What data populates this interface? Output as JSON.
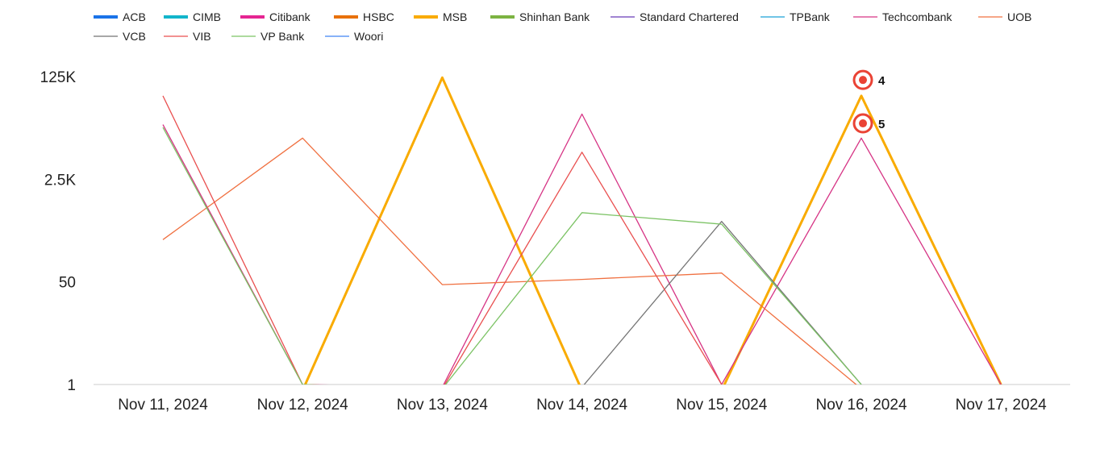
{
  "chart_data": {
    "type": "line",
    "y_scale": "log",
    "ylim": [
      1,
      125000
    ],
    "y_ticks": [
      "125K",
      "2.5K",
      "50",
      "1"
    ],
    "grid": false,
    "legend_position": "top-left",
    "categories": [
      "Nov 11, 2024",
      "Nov 12, 2024",
      "Nov 13, 2024",
      "Nov 14, 2024",
      "Nov 15, 2024",
      "Nov 16, 2024",
      "Nov 17, 2024"
    ],
    "series": [
      {
        "name": "ACB",
        "color": "#1a73e8",
        "legend_style": "bar",
        "values": [
          null,
          null,
          null,
          null,
          null,
          null,
          null
        ]
      },
      {
        "name": "CIMB",
        "color": "#12b5cb",
        "legend_style": "bar",
        "values": [
          null,
          null,
          null,
          null,
          null,
          null,
          null
        ]
      },
      {
        "name": "Citibank",
        "color": "#e52592",
        "legend_style": "bar",
        "values": [
          null,
          null,
          null,
          null,
          null,
          null,
          null
        ]
      },
      {
        "name": "HSBC",
        "color": "#e8710a",
        "legend_style": "bar",
        "values": [
          null,
          null,
          null,
          null,
          null,
          null,
          null
        ]
      },
      {
        "name": "MSB",
        "color": "#f9ab00",
        "legend_style": "bar",
        "values": [
          null,
          0.8,
          120000,
          0.8,
          0.8,
          60000,
          1
        ]
      },
      {
        "name": "Shinhan Bank",
        "color": "#7cb342",
        "legend_style": "bar",
        "values": [
          null,
          null,
          null,
          null,
          null,
          null,
          null
        ]
      },
      {
        "name": "Standard Chartered",
        "color": "#673ab7",
        "legend_style": "line",
        "values": [
          null,
          null,
          null,
          null,
          null,
          null,
          null
        ]
      },
      {
        "name": "TPBank",
        "color": "#1ba0d8",
        "legend_style": "line",
        "values": [
          null,
          null,
          null,
          null,
          null,
          null,
          null
        ]
      },
      {
        "name": "Techcombank",
        "color": "#d63384",
        "legend_style": "line",
        "values": [
          20000,
          1,
          0.9,
          30000,
          1,
          12000,
          1
        ]
      },
      {
        "name": "UOB",
        "color": "#f07040",
        "legend_style": "line",
        "values": [
          250,
          12000,
          45,
          55,
          70,
          0.85,
          null
        ]
      },
      {
        "name": "VCB",
        "color": "#757575",
        "legend_style": "line",
        "values": [
          null,
          null,
          null,
          0.9,
          500,
          1,
          null
        ]
      },
      {
        "name": "VIB",
        "color": "#e94f4f",
        "legend_style": "line",
        "values": [
          60000,
          1,
          0.85,
          7000,
          1,
          null,
          null
        ]
      },
      {
        "name": "VP Bank",
        "color": "#7cc365",
        "legend_style": "line",
        "values": [
          18000,
          1,
          0.85,
          700,
          450,
          1,
          null
        ]
      },
      {
        "name": "Woori",
        "color": "#4285f4",
        "legend_style": "line",
        "values": [
          null,
          null,
          null,
          null,
          null,
          null,
          null
        ]
      }
    ],
    "annotations": [
      {
        "label": "4",
        "x": "Nov 16, 2024",
        "y": 110000
      },
      {
        "label": "5",
        "x": "Nov 16, 2024",
        "y": 21000
      }
    ]
  }
}
